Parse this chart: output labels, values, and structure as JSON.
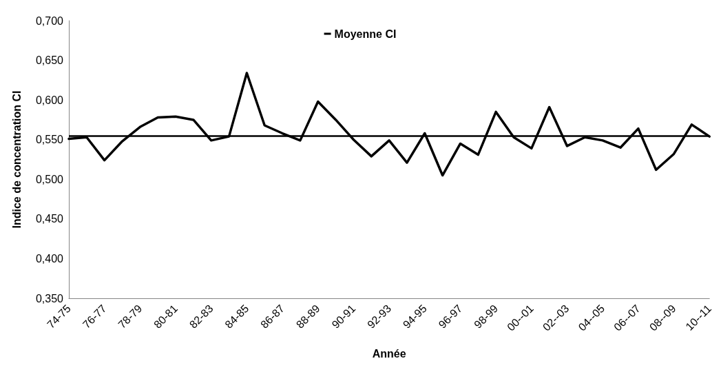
{
  "chart_data": {
    "type": "line",
    "xlabel": "Année",
    "ylabel": "Indice de concentration CI",
    "categories": [
      "74-75",
      null,
      "76-77",
      null,
      "78-79",
      null,
      "80-81",
      null,
      "82-83",
      null,
      "84-85",
      null,
      "86-87",
      null,
      "88-89",
      null,
      "90-91",
      null,
      "92-93",
      null,
      "94-95",
      null,
      "96-97",
      null,
      "98-99",
      null,
      "00--01",
      null,
      "02--03",
      null,
      "04--05",
      null,
      "06--07",
      null,
      "08--09",
      null,
      "10--11"
    ],
    "series": [
      {
        "name": "Moyenne CI",
        "color": "#000000",
        "values": [
          0.551,
          0.553,
          0.524,
          0.548,
          0.566,
          0.578,
          0.579,
          0.575,
          0.549,
          0.554,
          0.634,
          0.568,
          0.558,
          0.549,
          0.598,
          0.575,
          0.55,
          0.529,
          0.549,
          0.521,
          0.558,
          0.505,
          0.545,
          0.531,
          0.585,
          0.553,
          0.539,
          0.591,
          0.542,
          0.553,
          0.549,
          0.54,
          0.564,
          0.512,
          0.532,
          0.569,
          0.554
        ]
      }
    ],
    "ref_lines": [
      {
        "axis": "y",
        "value": 0.555,
        "color": "#000000"
      }
    ],
    "ylim": [
      0.35,
      0.7
    ],
    "yticks": [
      {
        "value": 0.35,
        "label": "0,350"
      },
      {
        "value": 0.4,
        "label": "0,400"
      },
      {
        "value": 0.45,
        "label": "0,450"
      },
      {
        "value": 0.5,
        "label": "0,500"
      },
      {
        "value": 0.55,
        "label": "0,550"
      },
      {
        "value": 0.6,
        "label": "0,600"
      },
      {
        "value": 0.65,
        "label": "0,650"
      },
      {
        "value": 0.7,
        "label": "0,700"
      }
    ],
    "grid": false,
    "legend": "top",
    "marker": "none",
    "line_style": "solid"
  }
}
